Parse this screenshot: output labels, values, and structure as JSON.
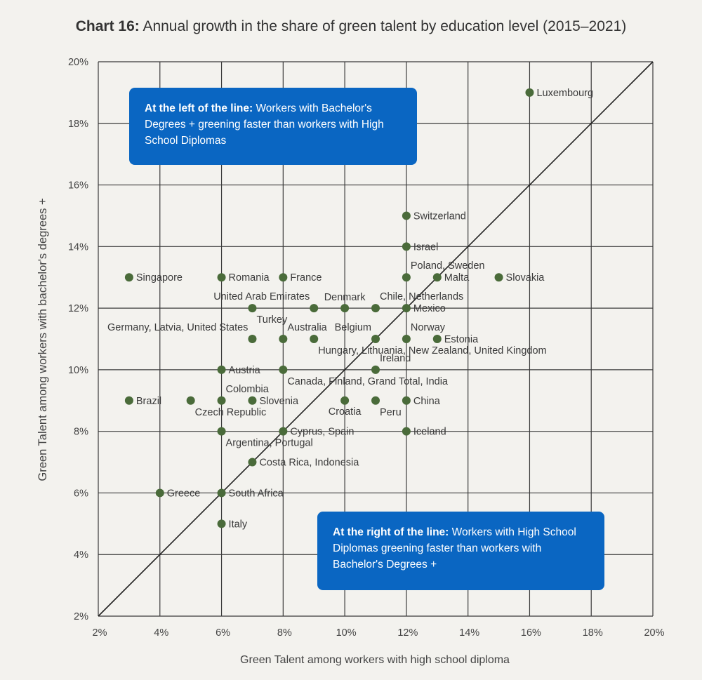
{
  "title": {
    "bold": "Chart 16:",
    "rest": " Annual growth in the share of green talent by education level (2015–2021)"
  },
  "callouts": {
    "left": {
      "bold": "At the left of the line:",
      "rest": " Workers with Bachelor's Degrees + greening faster than workers with High School Diplomas"
    },
    "right": {
      "bold": "At the right of the line:",
      "rest": " Workers with High School Diplomas greening faster than workers with Bachelor's Degrees +"
    }
  },
  "colors": {
    "point": "#4a6b3a",
    "accent": "#0a66c2",
    "grid": "#3a3a3a",
    "background": "#f3f2ee"
  },
  "chart_data": {
    "type": "scatter",
    "xlabel": "Green Talent among workers with high school diploma",
    "ylabel": "Green Talent among workers with bachelor's degrees +",
    "xlim": [
      2,
      20
    ],
    "ylim": [
      2,
      20
    ],
    "xticks": [
      2,
      4,
      6,
      8,
      10,
      12,
      14,
      16,
      18,
      20
    ],
    "yticks": [
      2,
      4,
      6,
      8,
      10,
      12,
      14,
      16,
      18,
      20
    ],
    "tick_suffix": "%",
    "grid": true,
    "diagonal": true,
    "points": [
      {
        "x": 16,
        "y": 19,
        "label": "Luxembourg",
        "pos": "right"
      },
      {
        "x": 12,
        "y": 15,
        "label": "Switzerland",
        "pos": "right"
      },
      {
        "x": 12,
        "y": 14,
        "label": "Israel",
        "pos": "right"
      },
      {
        "x": 12,
        "y": 13,
        "label": "Poland, Sweden",
        "pos": "above-right"
      },
      {
        "x": 13,
        "y": 13,
        "label": "Malta",
        "pos": "right"
      },
      {
        "x": 15,
        "y": 13,
        "label": "Slovakia",
        "pos": "right"
      },
      {
        "x": 3,
        "y": 13,
        "label": "Singapore",
        "pos": "right"
      },
      {
        "x": 6,
        "y": 13,
        "label": "Romania",
        "pos": "right"
      },
      {
        "x": 8,
        "y": 13,
        "label": "France",
        "pos": "right"
      },
      {
        "x": 7,
        "y": 12,
        "label": "Turkey",
        "pos": "below-right"
      },
      {
        "x": 9,
        "y": 12,
        "label": "United Arab Emirates",
        "pos": "above-left"
      },
      {
        "x": 10,
        "y": 12,
        "label": "Denmark",
        "pos": "above"
      },
      {
        "x": 11,
        "y": 12,
        "label": "Chile, Netherlands",
        "pos": "above-right"
      },
      {
        "x": 12,
        "y": 12,
        "label": "Mexico",
        "pos": "right"
      },
      {
        "x": 7,
        "y": 11,
        "label": "Germany, Latvia, United States",
        "pos": "above-left"
      },
      {
        "x": 8,
        "y": 11,
        "label": "Australia",
        "pos": "above-right"
      },
      {
        "x": 9,
        "y": 11,
        "label": "Hungary, Lithuania, New Zealand, United Kingdom",
        "pos": "below-right"
      },
      {
        "x": 11,
        "y": 11,
        "label": "Belgium",
        "pos": "above-left"
      },
      {
        "x": 12,
        "y": 11,
        "label": "Norway",
        "pos": "above-right"
      },
      {
        "x": 13,
        "y": 11,
        "label": "Estonia",
        "pos": "right"
      },
      {
        "x": 6,
        "y": 10,
        "label": "Austria",
        "pos": "right"
      },
      {
        "x": 8,
        "y": 10,
        "label": "Canada, Finland, Grand Total, India",
        "pos": "below-right"
      },
      {
        "x": 11,
        "y": 10,
        "label": "Ireland",
        "pos": "above-right"
      },
      {
        "x": 3,
        "y": 9,
        "label": "Brazil",
        "pos": "right"
      },
      {
        "x": 5,
        "y": 9,
        "label": "Czech Republic",
        "pos": "below-right"
      },
      {
        "x": 6,
        "y": 9,
        "label": "Colombia",
        "pos": "above-right"
      },
      {
        "x": 7,
        "y": 9,
        "label": "Slovenia",
        "pos": "right"
      },
      {
        "x": 10,
        "y": 9,
        "label": "Croatia",
        "pos": "below"
      },
      {
        "x": 11,
        "y": 9,
        "label": "Peru",
        "pos": "below-right"
      },
      {
        "x": 12,
        "y": 9,
        "label": "China",
        "pos": "right"
      },
      {
        "x": 6,
        "y": 8,
        "label": "Argentina, Portugal",
        "pos": "below-right"
      },
      {
        "x": 8,
        "y": 8,
        "label": "Cyprus, Spain",
        "pos": "right"
      },
      {
        "x": 12,
        "y": 8,
        "label": "Iceland",
        "pos": "right"
      },
      {
        "x": 7,
        "y": 7,
        "label": "Costa Rica, Indonesia",
        "pos": "right"
      },
      {
        "x": 4,
        "y": 6,
        "label": "Greece",
        "pos": "right"
      },
      {
        "x": 6,
        "y": 6,
        "label": "South Africa",
        "pos": "right"
      },
      {
        "x": 6,
        "y": 5,
        "label": "Italy",
        "pos": "right"
      }
    ]
  }
}
